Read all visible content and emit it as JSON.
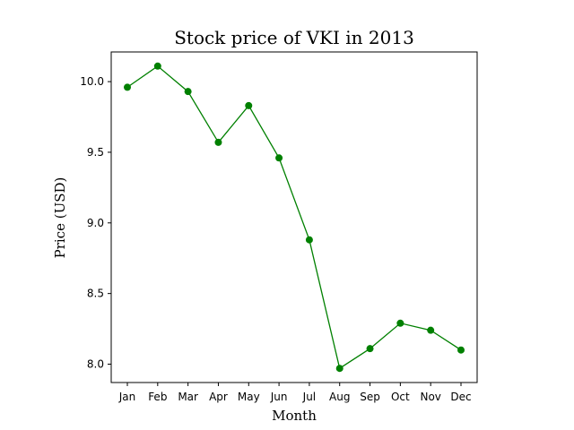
{
  "chart_data": {
    "type": "line",
    "title": "Stock price of VKI in 2013",
    "xlabel": "Month",
    "ylabel": "Price (USD)",
    "categories": [
      "Jan",
      "Feb",
      "Mar",
      "Apr",
      "May",
      "Jun",
      "Jul",
      "Aug",
      "Sep",
      "Oct",
      "Nov",
      "Dec"
    ],
    "series": [
      {
        "values": [
          9.96,
          10.11,
          9.93,
          9.57,
          9.83,
          9.46,
          8.88,
          7.97,
          8.11,
          8.29,
          8.24,
          8.1
        ],
        "color": "#008000",
        "marker": "circle"
      }
    ],
    "yticks": [
      8.0,
      8.5,
      9.0,
      9.5,
      10.0
    ],
    "ytick_labels": [
      "8.0",
      "8.5",
      "9.0",
      "9.5",
      "10.0"
    ],
    "ylim": [
      7.87,
      10.21
    ],
    "grid": false,
    "legend": "none"
  }
}
